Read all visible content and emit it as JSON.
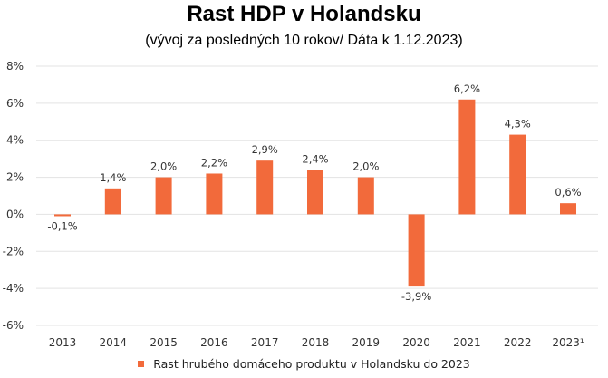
{
  "chart_data": {
    "type": "bar",
    "title": "Rast HDP v Holandsku",
    "subtitle": "(vývoj za posledných 10 rokov/ Dáta k 1.12.2023)",
    "categories": [
      "2013",
      "2014",
      "2015",
      "2016",
      "2017",
      "2018",
      "2019",
      "2020",
      "2021",
      "2022",
      "2023¹"
    ],
    "series": [
      {
        "name": "Rast hrubého domáceho produktu v Holandsku do 2023",
        "values": [
          -0.1,
          1.4,
          2.0,
          2.2,
          2.9,
          2.4,
          2.0,
          -3.9,
          6.2,
          4.3,
          0.6
        ],
        "labels": [
          "-0,1%",
          "1,4%",
          "2,0%",
          "2,2%",
          "2,9%",
          "2,4%",
          "2,0%",
          "-3,9%",
          "6,2%",
          "4,3%",
          "0,6%"
        ]
      }
    ],
    "yticks": [
      8,
      6,
      4,
      2,
      0,
      -2,
      -4,
      -6
    ],
    "ytick_labels": [
      "8%",
      "6%",
      "4%",
      "2%",
      "0%",
      "-2%",
      "-4%",
      "-6%"
    ],
    "ylim": [
      -6,
      8
    ],
    "grid": true,
    "legend_position": "bottom",
    "bar_color": "#f26a3b",
    "grid_color": "#e3e3e3"
  }
}
